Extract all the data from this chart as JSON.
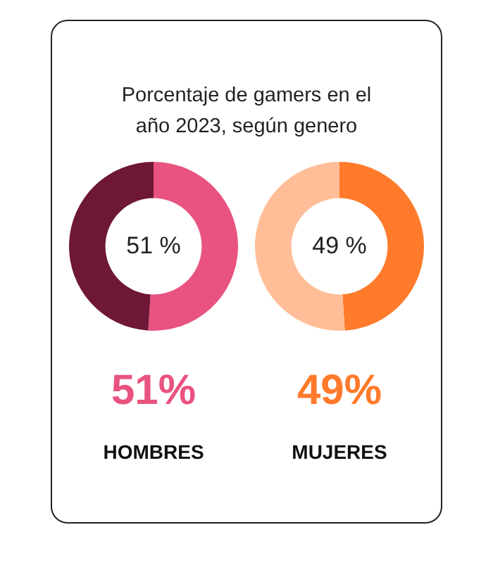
{
  "chart_data": [
    {
      "type": "donut",
      "title": "Porcentaje de gamers en el año 2023, según genero",
      "categories": [
        null,
        null
      ],
      "values": [
        51,
        49
      ],
      "colors": [
        "#e9537f",
        "#6e1737"
      ],
      "annotations": [
        "51 %",
        "51%",
        "HOMBRES"
      ],
      "legend": false
    },
    {
      "type": "donut",
      "categories": [
        null,
        null
      ],
      "values": [
        49,
        51
      ],
      "colors": [
        "#ff7a2b",
        "#ffbe98"
      ],
      "annotations": [
        "49 %",
        "49%",
        "MUJERES"
      ],
      "legend": false
    }
  ]
}
